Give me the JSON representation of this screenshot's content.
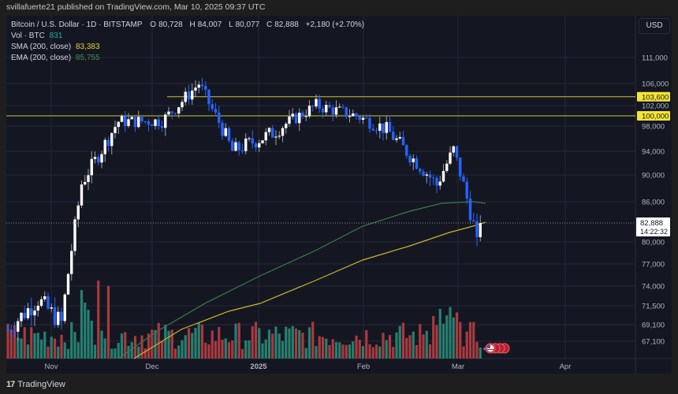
{
  "publish_line": "svillafuerte21 published on TradingView.com, Mar 10, 2025 09:37 UTC",
  "legend": {
    "symbol": "Bitcoin / U.S. Dollar · 1D · BITSTAMP",
    "open_label": "O",
    "open": "80,728",
    "high_label": "H",
    "high": "84,007",
    "low_label": "L",
    "low": "80,077",
    "close_label": "C",
    "close": "82,888",
    "change": "+2,180 (+2.70%)",
    "vol_label": "Vol · BTC",
    "vol_value": "831",
    "sma_label": "SMA (200, close)",
    "sma_value": "83,383",
    "ema_label": "EMA (200, close)",
    "ema_value": "85,755"
  },
  "currency_button": "USD",
  "brand": "TradingView",
  "colors": {
    "background": "#141722",
    "up_candle": "#ffffff",
    "down_candle": "#2962ff",
    "vol_up": "#26806f",
    "vol_down": "#a83a3f",
    "sma": "#c9b52e",
    "ema": "#3c7a4c",
    "level_line": "#c9c23a",
    "level_label_bg": "#f5e534"
  },
  "chart_data": {
    "type": "candlestick",
    "title": "Bitcoin / U.S. Dollar · 1D · BITSTAMP",
    "xlabel": "",
    "ylabel": "USD",
    "x_ticks": [
      "Nov",
      "Dec",
      "2025",
      "Feb",
      "Mar",
      "Apr"
    ],
    "y_ticks": [
      111000,
      106000,
      102000,
      98000,
      94000,
      90000,
      86000,
      80000,
      77000,
      74000,
      71500,
      69100,
      67100
    ],
    "ylim": [
      66000,
      113000
    ],
    "grid": true,
    "horizontal_levels": [
      {
        "price": 103600,
        "label": "103,600"
      },
      {
        "price": 100000,
        "label": "100,000"
      }
    ],
    "last_price": {
      "value": "82,888",
      "countdown": "14:22:32"
    },
    "indicators": [
      {
        "name": "SMA (200, close)",
        "last": 83383
      },
      {
        "name": "EMA (200, close)",
        "last": 85755
      }
    ],
    "ohlc_last": {
      "open": 80728,
      "high": 84007,
      "low": 80077,
      "close": 82888,
      "change": 2180,
      "change_pct": 2.7
    },
    "approx_close_path": [
      {
        "date": "Oct 20",
        "close": 68500
      },
      {
        "date": "Oct 29",
        "close": 72300
      },
      {
        "date": "Nov 5",
        "close": 69300
      },
      {
        "date": "Nov 11",
        "close": 88700
      },
      {
        "date": "Nov 22",
        "close": 98900
      },
      {
        "date": "Dec 5",
        "close": 99000
      },
      {
        "date": "Dec 16",
        "close": 106000
      },
      {
        "date": "Dec 26",
        "close": 94000
      },
      {
        "date": "Jan 7",
        "close": 96900
      },
      {
        "date": "Jan 20",
        "close": 102000
      },
      {
        "date": "Feb 1",
        "close": 100000
      },
      {
        "date": "Feb 10",
        "close": 97500
      },
      {
        "date": "Feb 25",
        "close": 88500
      },
      {
        "date": "Mar 2",
        "close": 94200
      },
      {
        "date": "Mar 9",
        "close": 80700
      },
      {
        "date": "Mar 10",
        "close": 82888
      }
    ]
  }
}
